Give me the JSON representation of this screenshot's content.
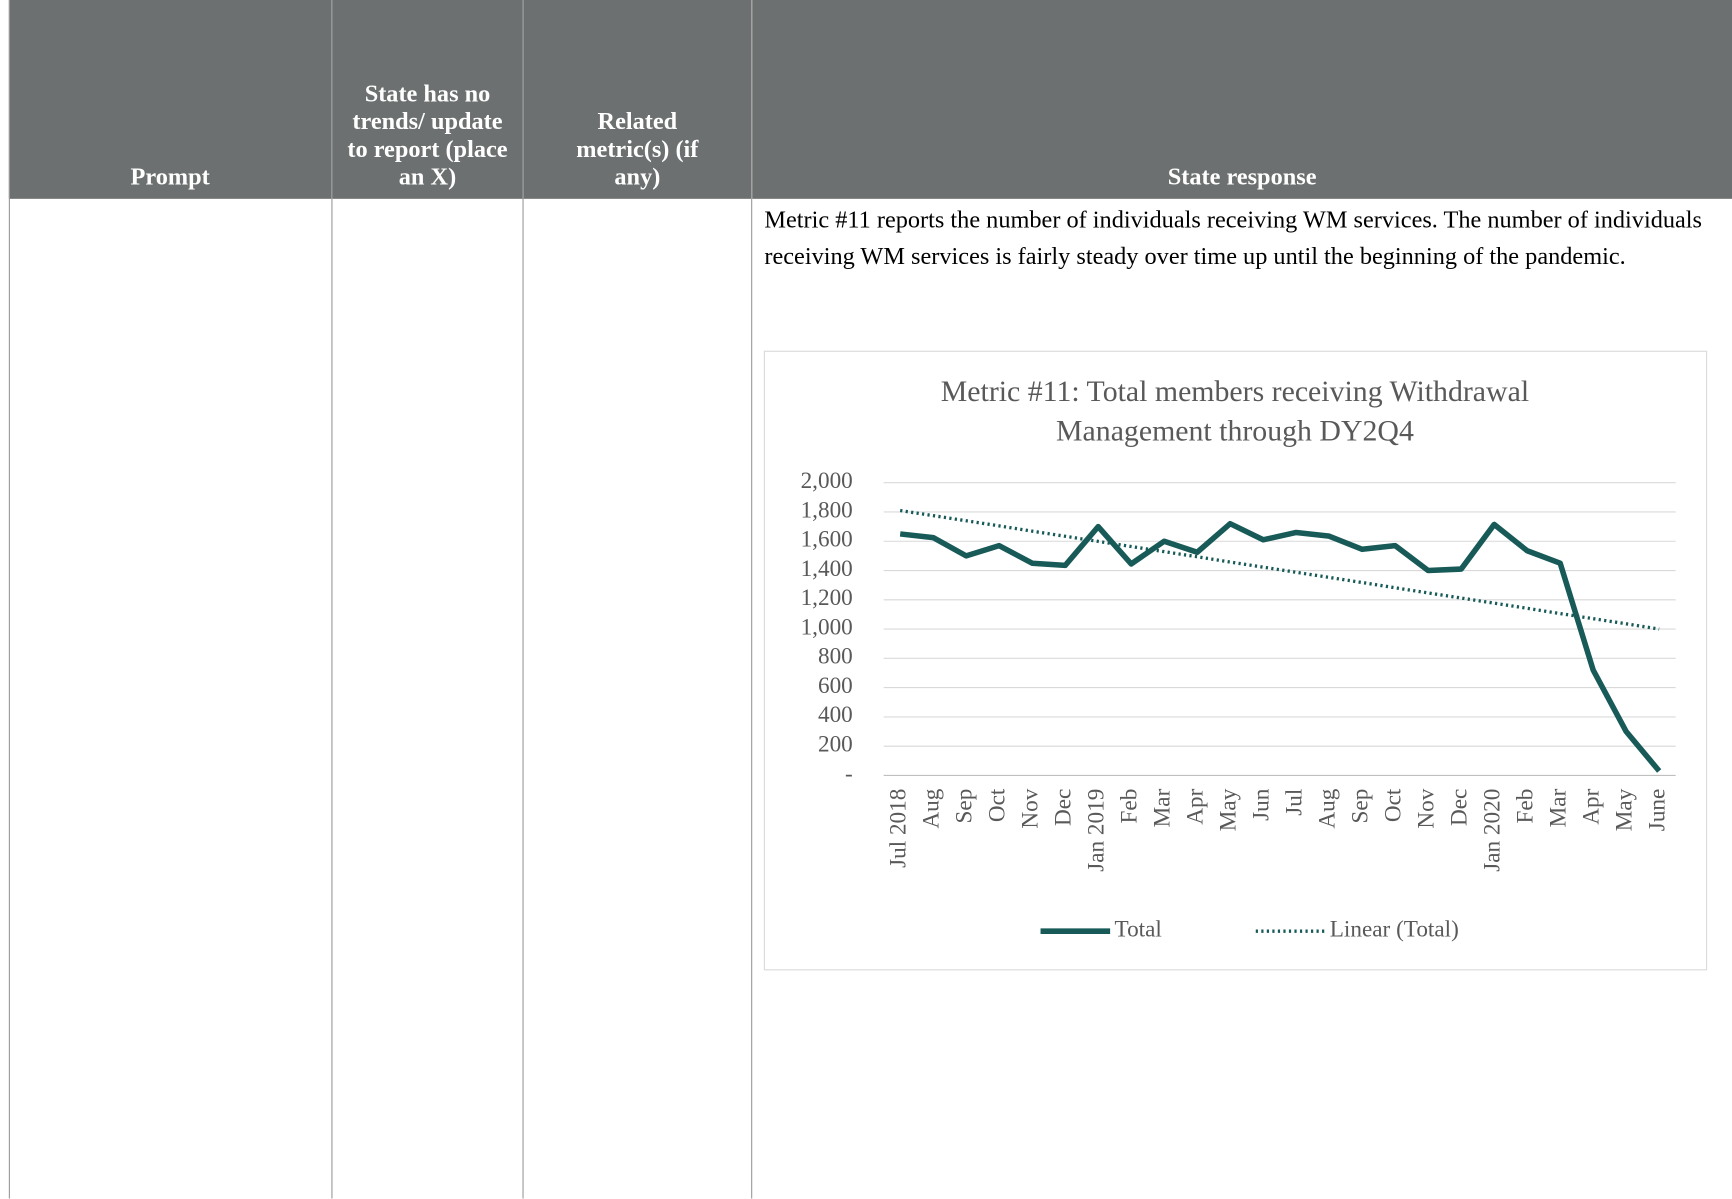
{
  "table": {
    "header": [
      "Prompt",
      "State has no trends/ update to report (place an X)",
      "Related metric(s) (if any)",
      "State response"
    ]
  },
  "response": {
    "text": "Metric #11 reports the number of individuals receiving WM services. The number of individuals receiving WM services is fairly steady over time up until the beginning of the pandemic."
  },
  "chart_data": {
    "type": "line",
    "title": "Metric #11: Total members receiving Withdrawal Management through DY2Q4",
    "categories": [
      "Jul 2018",
      "Aug",
      "Sep",
      "Oct",
      "Nov",
      "Dec",
      "Jan 2019",
      "Feb",
      "Mar",
      "Apr",
      "May",
      "Jun",
      "Jul",
      "Aug",
      "Sep",
      "Oct",
      "Nov",
      "Dec",
      "Jan 2020",
      "Feb",
      "Mar",
      "Apr",
      "May",
      "June"
    ],
    "series": [
      {
        "name": "Total",
        "color": "#175a58",
        "style": "solid",
        "values": [
          1650,
          1625,
          1500,
          1570,
          1450,
          1435,
          1700,
          1445,
          1600,
          1525,
          1720,
          1610,
          1660,
          1635,
          1545,
          1570,
          1400,
          1410,
          1715,
          1535,
          1450,
          720,
          300,
          30
        ]
      },
      {
        "name": "Linear (Total)",
        "color": "#175a58",
        "style": "dotted",
        "values": [
          1810,
          1775,
          1740,
          1705,
          1669,
          1634,
          1599,
          1564,
          1529,
          1494,
          1458,
          1423,
          1388,
          1353,
          1318,
          1282,
          1247,
          1212,
          1177,
          1142,
          1106,
          1071,
          1036,
          1000
        ]
      }
    ],
    "ylim": [
      0,
      2000
    ],
    "yticks": [
      {
        "value": 0,
        "label": "-"
      },
      200,
      400,
      600,
      800,
      {
        "value": 1000,
        "label": "1,000"
      },
      {
        "value": 1200,
        "label": "1,200"
      },
      {
        "value": 1400,
        "label": "1,400"
      },
      {
        "value": 1600,
        "label": "1,600"
      },
      {
        "value": 1800,
        "label": "1,800"
      },
      {
        "value": 2000,
        "label": "2,000"
      }
    ],
    "grid": true,
    "legend": "bottom"
  }
}
